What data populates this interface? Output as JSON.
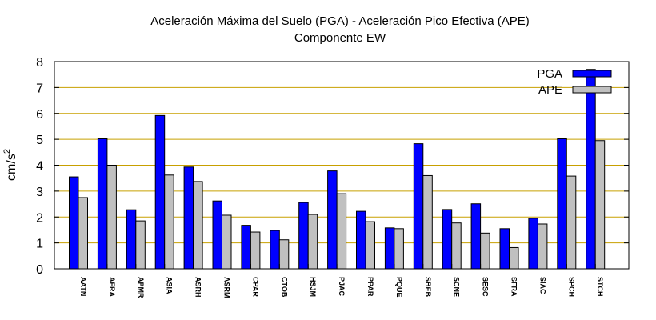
{
  "chart_data": {
    "type": "bar",
    "title": "Aceleración Máxima del Suelo (PGA) -  Aceleración Pico Efectiva (APE)",
    "subtitle": "Componente EW",
    "ylabel": "cm/s",
    "ylabel_superscript": "2",
    "xlabel": "",
    "ylim": [
      0,
      8
    ],
    "yticks": [
      "0",
      "1",
      "2",
      "3",
      "4",
      "5",
      "6",
      "7",
      "8"
    ],
    "grid": "horizontal",
    "legend_position": "top-right",
    "categories": [
      "AATN",
      "AFRA",
      "APMR",
      "ASIA",
      "ASRH",
      "ASRM",
      "CPAR",
      "CTOB",
      "HSJM",
      "PJAC",
      "PPAR",
      "PQUE",
      "SBEB",
      "SCNE",
      "SESC",
      "SFRA",
      "SIAC",
      "SPCH",
      "STCH"
    ],
    "series": [
      {
        "name": "PGA",
        "color": "#0000ff",
        "values": [
          3.55,
          5.02,
          2.28,
          5.92,
          3.93,
          2.62,
          1.68,
          1.48,
          2.56,
          3.78,
          2.22,
          1.58,
          4.83,
          2.29,
          2.51,
          1.55,
          1.95,
          5.02,
          7.7
        ]
      },
      {
        "name": "APE",
        "color": "#c0c0c0",
        "values": [
          2.75,
          4.0,
          1.85,
          3.62,
          3.37,
          2.07,
          1.42,
          1.12,
          2.1,
          2.9,
          1.82,
          1.55,
          3.6,
          1.77,
          1.38,
          0.82,
          1.73,
          3.58,
          4.95
        ]
      }
    ],
    "gridline_color": "#c8a000"
  }
}
